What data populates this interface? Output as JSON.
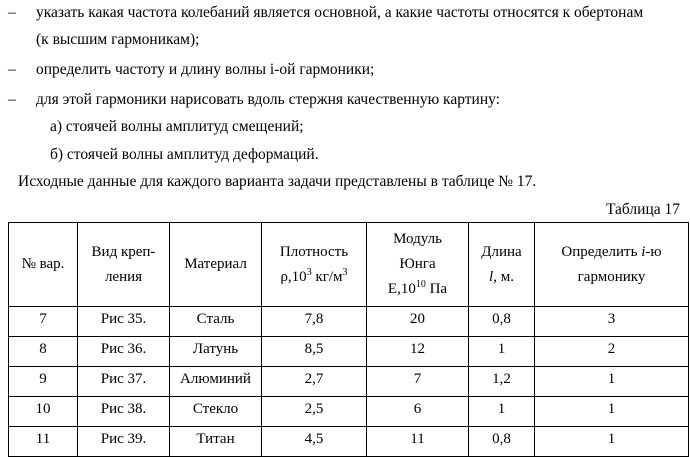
{
  "bullets": [
    "указать какая частота колебаний является основной, а какие частоты относятся к обертонам",
    "(к высшим гармоникам);",
    "определить частоту и длину волны i-ой гармоники;",
    "для этой гармоники нарисовать вдоль стержня качественную картину:",
    "а) стоячей волны амплитуд смещений;",
    "б) стоячей волны амплитуд деформаций."
  ],
  "dash": "–",
  "intro": "Исходные данные для каждого варианта задачи представлены в таблице № 17.",
  "table_caption": "Таблица 17",
  "headers": {
    "num": "№ вар.",
    "mount1": "Вид креп-",
    "mount2": "ления",
    "material": "Материал",
    "density1": "Плотность",
    "density2": "ρ,10",
    "density_exp": "3",
    "density3": " кг/м",
    "density_exp2": "3",
    "modulus1": "Модуль",
    "modulus2": "Юнга",
    "modulus3": "Е,10",
    "modulus_exp": "10",
    "modulus4": " Па",
    "length1": "Длина",
    "length_l": "l",
    "length2": ", м.",
    "harm1": "Определить ",
    "harm_i": "i",
    "harm2": "-ю",
    "harm3": "гармонику"
  },
  "rows": [
    [
      "7",
      "Рис 35.",
      "Сталь",
      "7,8",
      "20",
      "0,8",
      "3"
    ],
    [
      "8",
      "Рис 36.",
      "Латунь",
      "8,5",
      "12",
      "1",
      "2"
    ],
    [
      "9",
      "Рис 37.",
      "Алюминий",
      "2,7",
      "7",
      "1,2",
      "1"
    ],
    [
      "10",
      "Рис 38.",
      "Стекло",
      "2,5",
      "6",
      "1",
      "1"
    ],
    [
      "11",
      "Рис 39.",
      "Титан",
      "4,5",
      "11",
      "0,8",
      "1"
    ]
  ]
}
